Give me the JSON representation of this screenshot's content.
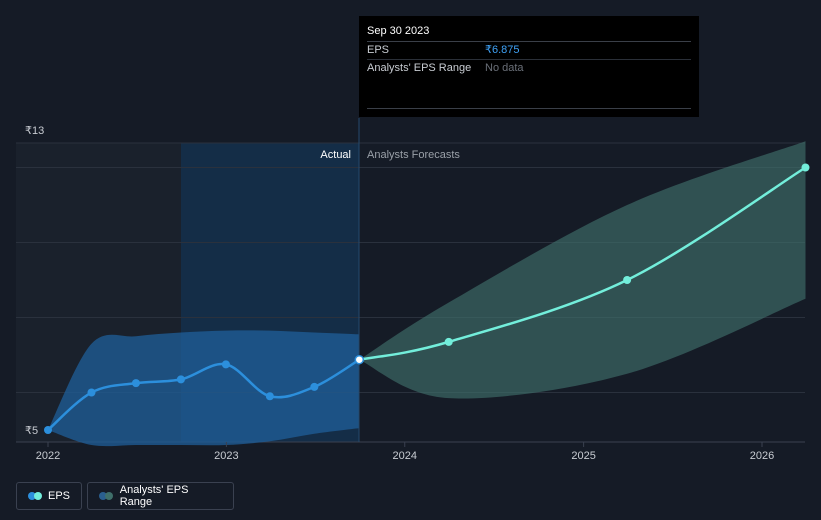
{
  "chart_data": {
    "type": "line",
    "y_axis": {
      "max_label": "₹13",
      "min_label": "₹5",
      "ylim": [
        5,
        13
      ]
    },
    "x_axis": {
      "ticks": [
        "2022",
        "2023",
        "2024",
        "2025",
        "2026"
      ]
    },
    "sections": {
      "actual_label": "Actual",
      "forecast_label": "Analysts Forecasts"
    },
    "series": [
      {
        "name": "EPS",
        "color": "#2c8fdc",
        "points": [
          {
            "x": "2022-01-01",
            "y": 5.0
          },
          {
            "x": "2022-03-31",
            "y": 6.0
          },
          {
            "x": "2022-06-30",
            "y": 6.25
          },
          {
            "x": "2022-09-30",
            "y": 6.35
          },
          {
            "x": "2022-12-31",
            "y": 6.75
          },
          {
            "x": "2023-03-31",
            "y": 5.9
          },
          {
            "x": "2023-06-30",
            "y": 6.15
          },
          {
            "x": "2023-09-30",
            "y": 6.875
          }
        ]
      },
      {
        "name": "EPS Forecast",
        "color": "#73eedb",
        "points": [
          {
            "x": "2023-09-30",
            "y": 6.875
          },
          {
            "x": "2024-03-31",
            "y": 7.35
          },
          {
            "x": "2025-03-31",
            "y": 9.0
          },
          {
            "x": "2026-03-31",
            "y": 12.0
          }
        ]
      }
    ],
    "ranges": [
      {
        "name": "Actual Range",
        "color": "#1f5f9a",
        "upper": [
          {
            "x": "2022-01-01",
            "y": 5.0
          },
          {
            "x": "2022-03-31",
            "y": 7.3
          },
          {
            "x": "2022-06-30",
            "y": 7.5
          },
          {
            "x": "2022-09-30",
            "y": 7.6
          },
          {
            "x": "2022-12-31",
            "y": 7.65
          },
          {
            "x": "2023-03-31",
            "y": 7.65
          },
          {
            "x": "2023-06-30",
            "y": 7.6
          },
          {
            "x": "2023-09-30",
            "y": 7.55
          }
        ],
        "lower": [
          {
            "x": "2022-01-01",
            "y": 5.0
          },
          {
            "x": "2022-03-31",
            "y": 4.6
          },
          {
            "x": "2022-06-30",
            "y": 4.6
          },
          {
            "x": "2022-09-30",
            "y": 4.6
          },
          {
            "x": "2022-12-31",
            "y": 4.6
          },
          {
            "x": "2023-03-31",
            "y": 4.7
          },
          {
            "x": "2023-06-30",
            "y": 4.9
          },
          {
            "x": "2023-09-30",
            "y": 5.05
          }
        ]
      },
      {
        "name": "Analysts' EPS Range",
        "color": "#3f6f6a",
        "upper": [
          {
            "x": "2023-09-30",
            "y": 6.875
          },
          {
            "x": "2024-03-31",
            "y": 8.4
          },
          {
            "x": "2025-03-31",
            "y": 11.0
          },
          {
            "x": "2026-03-31",
            "y": 12.7
          }
        ],
        "lower": [
          {
            "x": "2023-09-30",
            "y": 6.875
          },
          {
            "x": "2024-03-31",
            "y": 5.85
          },
          {
            "x": "2025-03-31",
            "y": 6.5
          },
          {
            "x": "2026-03-31",
            "y": 8.5
          }
        ]
      }
    ],
    "grid": true,
    "legend_position": "bottom-left"
  },
  "tooltip": {
    "date": "Sep 30 2023",
    "rows": [
      {
        "label": "EPS",
        "value": "₹6.875"
      },
      {
        "label": "Analysts' EPS Range",
        "value": "No data"
      }
    ]
  },
  "legend": {
    "items": [
      {
        "label": "EPS"
      },
      {
        "label": "Analysts' EPS Range"
      }
    ]
  }
}
